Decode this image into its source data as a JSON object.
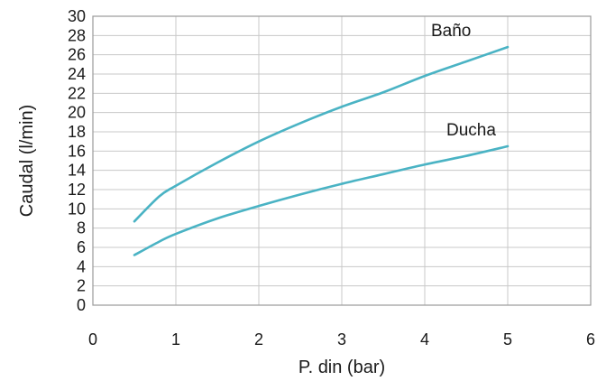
{
  "chart_data": {
    "type": "line",
    "xlabel": "P. din (bar)",
    "ylabel": "Caudal (l/min)",
    "xlim": [
      0,
      6
    ],
    "ylim": [
      0,
      30
    ],
    "xticks": [
      "0",
      "1",
      "2",
      "3",
      "4",
      "5",
      "6"
    ],
    "yticks": [
      "0",
      "2",
      "4",
      "6",
      "8",
      "10",
      "12",
      "14",
      "16",
      "18",
      "20",
      "22",
      "24",
      "26",
      "28",
      "30"
    ],
    "grid": true,
    "series": [
      {
        "name": "Baño",
        "color": "#4ab3c4",
        "points": [
          [
            0.5,
            8.7
          ],
          [
            0.8,
            11.3
          ],
          [
            1.0,
            12.4
          ],
          [
            1.5,
            14.8
          ],
          [
            2.0,
            17.0
          ],
          [
            2.5,
            18.9
          ],
          [
            3.0,
            20.6
          ],
          [
            3.5,
            22.1
          ],
          [
            4.0,
            23.8
          ],
          [
            4.5,
            25.3
          ],
          [
            5.0,
            26.8
          ]
        ]
      },
      {
        "name": "Ducha",
        "color": "#4ab3c4",
        "points": [
          [
            0.5,
            5.2
          ],
          [
            0.8,
            6.6
          ],
          [
            1.0,
            7.4
          ],
          [
            1.5,
            9.0
          ],
          [
            2.0,
            10.3
          ],
          [
            2.5,
            11.5
          ],
          [
            3.0,
            12.6
          ],
          [
            3.5,
            13.6
          ],
          [
            4.0,
            14.6
          ],
          [
            4.5,
            15.5
          ],
          [
            5.0,
            16.5
          ]
        ]
      }
    ],
    "colors": {
      "grid": "#c8c8c8",
      "frame": "#9a9a9a"
    }
  }
}
